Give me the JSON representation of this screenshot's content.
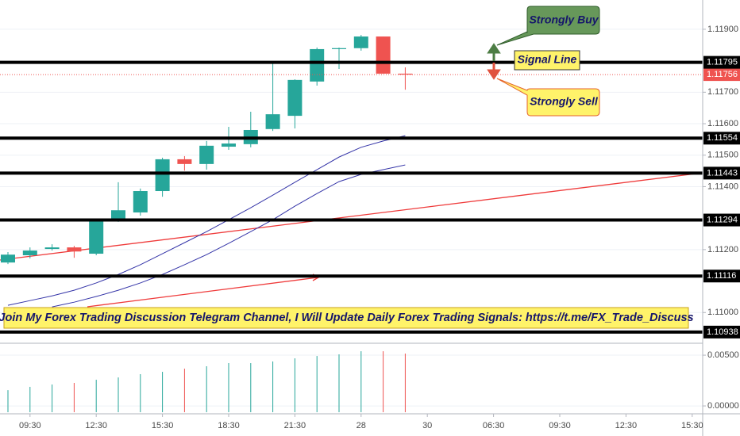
{
  "chart_data": [
    {
      "type": "candlestick",
      "categories": [
        null,
        "09:30",
        null,
        null,
        "12:30",
        null,
        null,
        "15:30",
        null,
        null,
        "18:30",
        null,
        null,
        "21:30",
        null,
        null,
        "28",
        null,
        null,
        "30",
        null,
        null,
        "06:30",
        null,
        null,
        "09:30",
        null,
        null,
        "12:30",
        null,
        null,
        "15:30"
      ],
      "open": [
        1.11159,
        1.11182,
        1.11202,
        1.11207,
        1.11187,
        1.1129,
        1.11318,
        1.11386,
        1.11487,
        1.11472,
        1.11527,
        1.11535,
        1.11583,
        1.11625,
        1.11734,
        1.11837,
        1.1184,
        1.11877,
        1.11759,
        null,
        null,
        null,
        null,
        null,
        null,
        null,
        null,
        null,
        null,
        null,
        null,
        null
      ],
      "high": [
        1.11192,
        1.11207,
        1.11217,
        1.11212,
        1.11298,
        1.11414,
        1.11394,
        1.11492,
        1.11497,
        1.11545,
        1.1159,
        1.11638,
        1.11792,
        1.11741,
        1.11842,
        1.11842,
        1.11882,
        1.11877,
        1.11779,
        null,
        null,
        null,
        null,
        null,
        null,
        null,
        null,
        null,
        null,
        null,
        null,
        null
      ],
      "low": [
        1.11154,
        1.11172,
        1.11197,
        1.11174,
        1.11182,
        1.11288,
        1.11308,
        1.11368,
        1.11451,
        1.11454,
        1.11517,
        1.11525,
        1.11577,
        1.11585,
        1.11721,
        1.11774,
        1.11832,
        1.11759,
        1.11708,
        null,
        null,
        null,
        null,
        null,
        null,
        null,
        null,
        null,
        null,
        null,
        null,
        null
      ],
      "close": [
        1.11184,
        1.11197,
        1.11207,
        1.11194,
        1.1129,
        1.11325,
        1.11386,
        1.11487,
        1.11472,
        1.1153,
        1.11537,
        1.1158,
        1.1163,
        1.11739,
        1.11837,
        1.1184,
        1.11877,
        1.11759,
        1.11756,
        null,
        null,
        null,
        null,
        null,
        null,
        null,
        null,
        null,
        null,
        null,
        null,
        null
      ],
      "up_color": "#26a69a",
      "down_color": "#ef5350",
      "moving_averages": [
        {
          "color": "#3535a8",
          "values": [
            1.11023,
            1.11038,
            1.11053,
            1.11071,
            1.11094,
            1.11121,
            1.11152,
            1.11187,
            1.11222,
            1.11257,
            1.11295,
            1.11333,
            1.11373,
            1.11414,
            1.11454,
            1.11494,
            1.11525,
            1.11545,
            1.11562,
            null,
            null,
            null,
            null,
            null,
            null,
            null,
            null,
            null,
            null,
            null,
            null,
            null
          ]
        },
        {
          "color": "#3535a8",
          "values": [
            null,
            null,
            1.11018,
            1.11033,
            1.11051,
            1.11071,
            1.11094,
            1.11121,
            1.11152,
            1.11184,
            1.1122,
            1.11257,
            1.11295,
            1.11338,
            1.11378,
            1.11416,
            1.11439,
            1.11454,
            1.11469,
            null,
            null,
            null,
            null,
            null,
            null,
            null,
            null,
            null,
            null,
            null,
            null,
            null
          ]
        }
      ],
      "ylim": [
        1.10905,
        1.11993
      ],
      "yticks": [
        {
          "value": 1.119,
          "label": "1.11900"
        },
        {
          "value": 1.117,
          "label": "1.11700"
        },
        {
          "value": 1.116,
          "label": "1.11600"
        },
        {
          "value": 1.115,
          "label": "1.11500"
        },
        {
          "value": 1.114,
          "label": "1.11400"
        },
        {
          "value": 1.112,
          "label": "1.11200"
        },
        {
          "value": 1.11,
          "label": "1.11000"
        }
      ],
      "grid": true,
      "levels": {
        "color": "#000000",
        "values": [
          1.11795,
          1.11554,
          1.11443,
          1.11294,
          1.11116,
          1.10938
        ]
      },
      "last_price": {
        "color": "#ef5350",
        "value": 1.11756
      },
      "annotations": [
        "Strongly Buy",
        "Signal Line",
        "Strongly Sell",
        "Join My Forex Trading Discussion Telegram Channel, I Will Update Daily Forex Trading Signals: https://t.me/FX_Trade_Discuss"
      ]
    },
    {
      "type": "bar",
      "values": [
        0.00156,
        0.00188,
        0.00211,
        0.00227,
        0.00258,
        0.00281,
        0.00313,
        0.00336,
        0.00367,
        0.00391,
        0.00422,
        0.00422,
        0.00438,
        0.00469,
        0.00492,
        0.00508,
        0.00539,
        0.00539,
        0.00516,
        null,
        null,
        null,
        null,
        null,
        null,
        null,
        null,
        null,
        null,
        null,
        null,
        null
      ],
      "ylim": [
        -0.00062,
        0.00602
      ],
      "yticks": [
        {
          "value": 0.005,
          "label": "0.00500"
        },
        {
          "value": 0,
          "label": "0.00000"
        }
      ],
      "grid": true
    }
  ]
}
